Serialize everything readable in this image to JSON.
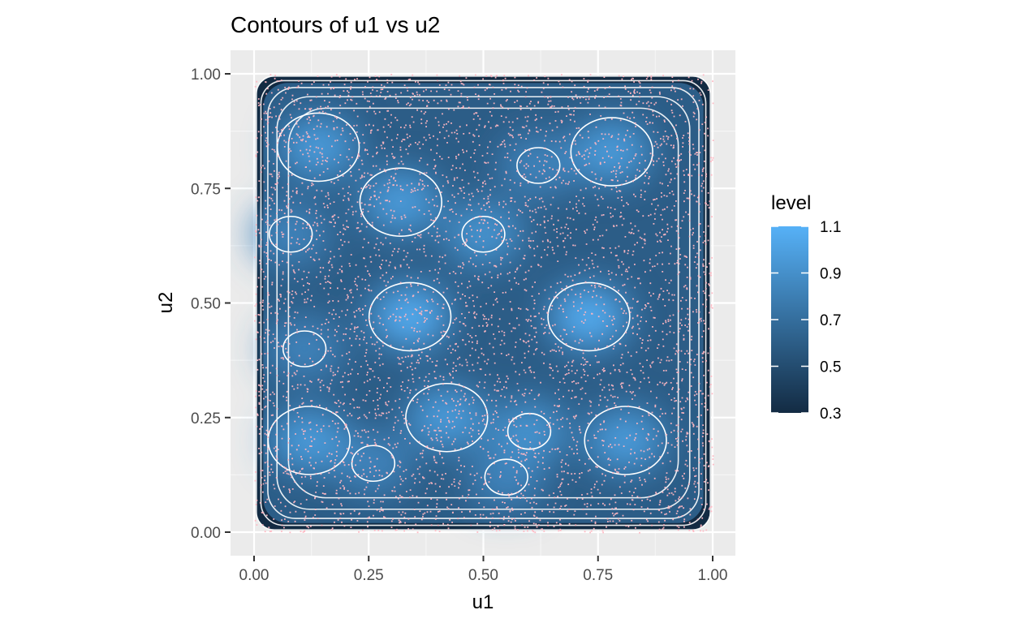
{
  "chart_data": {
    "type": "contour",
    "title": "Contours of u1 vs u2",
    "xlabel": "u1",
    "ylabel": "u2",
    "xlim": [
      -0.05,
      1.05
    ],
    "ylim": [
      -0.05,
      1.02
    ],
    "x_ticks": [
      0.0,
      0.25,
      0.5,
      0.75,
      1.0
    ],
    "x_tick_labels": [
      "0.00",
      "0.25",
      "0.50",
      "0.75",
      "1.00"
    ],
    "y_ticks": [
      0.0,
      0.25,
      0.5,
      0.75,
      1.0
    ],
    "y_tick_labels": [
      "0.00",
      "0.25",
      "0.50",
      "0.75",
      "1.00"
    ],
    "grid": true,
    "legend": {
      "title": "level",
      "position": "right",
      "range": [
        0.3,
        1.1
      ],
      "ticks": [
        1.1,
        0.9,
        0.7,
        0.5,
        0.3
      ],
      "tick_labels": [
        "1.1",
        "0.9",
        "0.7",
        "0.5",
        "0.3"
      ],
      "low_color": "#132B43",
      "high_color": "#56B1F7"
    },
    "points": {
      "color": "#FFB6C1",
      "approx_count": 5000
    },
    "contour_color": "#ffffff",
    "panel_background": "#EBEBEB",
    "hotspots": [
      {
        "u1": 0.14,
        "u2": 0.84,
        "level": 1.0
      },
      {
        "u1": 0.78,
        "u2": 0.83,
        "level": 1.0
      },
      {
        "u1": 0.62,
        "u2": 0.8,
        "level": 0.85
      },
      {
        "u1": 0.08,
        "u2": 0.65,
        "level": 0.85
      },
      {
        "u1": 0.34,
        "u2": 0.47,
        "level": 1.1
      },
      {
        "u1": 0.73,
        "u2": 0.47,
        "level": 1.1
      },
      {
        "u1": 0.11,
        "u2": 0.4,
        "level": 0.85
      },
      {
        "u1": 0.12,
        "u2": 0.2,
        "level": 1.0
      },
      {
        "u1": 0.42,
        "u2": 0.25,
        "level": 1.0
      },
      {
        "u1": 0.6,
        "u2": 0.22,
        "level": 0.95
      },
      {
        "u1": 0.81,
        "u2": 0.2,
        "level": 1.0
      },
      {
        "u1": 0.26,
        "u2": 0.15,
        "level": 0.85
      },
      {
        "u1": 0.55,
        "u2": 0.12,
        "level": 0.85
      },
      {
        "u1": 0.32,
        "u2": 0.72,
        "level": 1.0
      },
      {
        "u1": 0.5,
        "u2": 0.65,
        "level": 0.95
      }
    ]
  }
}
